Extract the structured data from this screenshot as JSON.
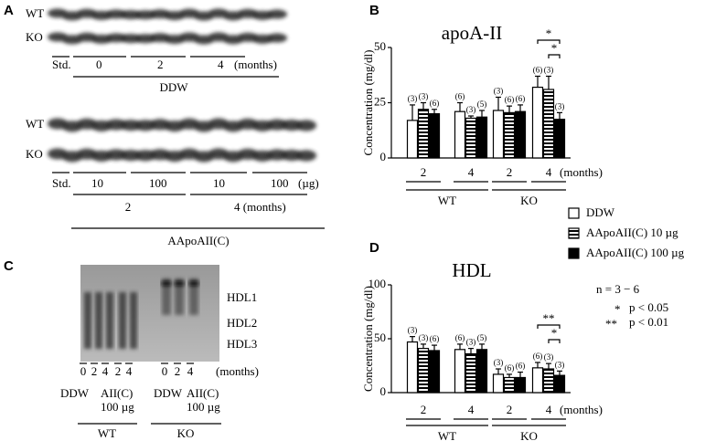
{
  "chart_data": [
    {
      "type": "bar",
      "panel": "B",
      "title": "apoA-II",
      "ylabel": "Concentration (mg/dl)",
      "categories": [
        "2",
        "4",
        "2",
        "4"
      ],
      "x_unit": "(months)",
      "groups": [
        "WT",
        "KO"
      ],
      "ylim": [
        0,
        50
      ],
      "yticks": [
        0,
        25,
        50
      ],
      "series": [
        {
          "name": "DDW",
          "color": "#ffffff",
          "values": [
            17,
            21,
            21.5,
            32
          ],
          "errors": [
            7,
            4,
            6,
            5
          ],
          "n_labels": [
            "(3)",
            "(6)",
            "(3)",
            "(6)"
          ]
        },
        {
          "name": "AApoAII(C) 10 µg",
          "color": "#000000",
          "pattern": "stripes",
          "values": [
            22,
            18,
            20.5,
            31
          ],
          "errors": [
            3,
            1,
            3,
            6
          ],
          "n_labels": [
            "(3)",
            "(3)",
            "(6)",
            "(3)"
          ]
        },
        {
          "name": "AApoAII(C) 100 µg",
          "color": "#000000",
          "values": [
            20,
            18.5,
            21,
            17.5
          ],
          "errors": [
            2,
            3,
            3,
            3
          ],
          "n_labels": [
            "(6)",
            "(5)",
            "(6)",
            "(3)"
          ]
        }
      ],
      "significance": [
        "*",
        "*"
      ]
    },
    {
      "type": "bar",
      "panel": "D",
      "title": "HDL",
      "ylabel": "Concentration (mg/dl)",
      "categories": [
        "2",
        "4",
        "2",
        "4"
      ],
      "x_unit": "(months)",
      "groups": [
        "WT",
        "KO"
      ],
      "ylim": [
        0,
        100
      ],
      "yticks": [
        0,
        50,
        100
      ],
      "series": [
        {
          "name": "DDW",
          "color": "#ffffff",
          "values": [
            47,
            40,
            17,
            23
          ],
          "errors": [
            5,
            5,
            5,
            5
          ],
          "n_labels": [
            "(3)",
            "(6)",
            "(3)",
            "(6)"
          ]
        },
        {
          "name": "AApoAII(C) 10 µg",
          "color": "#000000",
          "pattern": "stripes",
          "values": [
            41,
            36,
            14,
            22
          ],
          "errors": [
            4,
            5,
            3,
            5
          ],
          "n_labels": [
            "(3)",
            "(3)",
            "(6)",
            "(3)"
          ]
        },
        {
          "name": "AApoAII(C) 100 µg",
          "color": "#000000",
          "values": [
            39,
            40,
            14,
            16
          ],
          "errors": [
            5,
            5,
            5,
            4
          ],
          "n_labels": [
            "(6)",
            "(5)",
            "(6)",
            "(3)"
          ]
        }
      ],
      "significance": [
        "**",
        "*"
      ]
    }
  ],
  "panel_a": {
    "letter": "A",
    "blot1": {
      "rows": [
        "WT",
        "KO"
      ],
      "lanes": [
        "Std.",
        "0",
        "2",
        "4",
        "(months)"
      ],
      "group": "DDW"
    },
    "blot2": {
      "rows": [
        "WT",
        "KO"
      ],
      "lanes": [
        "Std.",
        "10",
        "100",
        "10",
        "100",
        "(µg)"
      ],
      "months": [
        "2",
        "4 (months)"
      ],
      "group": "AApoAII(C)"
    }
  },
  "panel_c": {
    "letter": "C",
    "bands": [
      "HDL1",
      "HDL2",
      "HDL3"
    ],
    "wt_lanes": [
      "0",
      "2",
      "4",
      "2",
      "4"
    ],
    "ko_lanes": [
      "0",
      "2",
      "4"
    ],
    "unit": "(months)",
    "wt_treat": [
      "DDW",
      "AII(C)",
      "100 µg"
    ],
    "ko_treat": [
      "DDW",
      "AII(C)",
      "100 µg"
    ],
    "genotypes": [
      "WT",
      "KO"
    ]
  },
  "stats": {
    "n": "n = 3 − 6",
    "one_star": "*",
    "p1": "p < 0.05",
    "two_star": "**",
    "p2": "p < 0.01"
  }
}
